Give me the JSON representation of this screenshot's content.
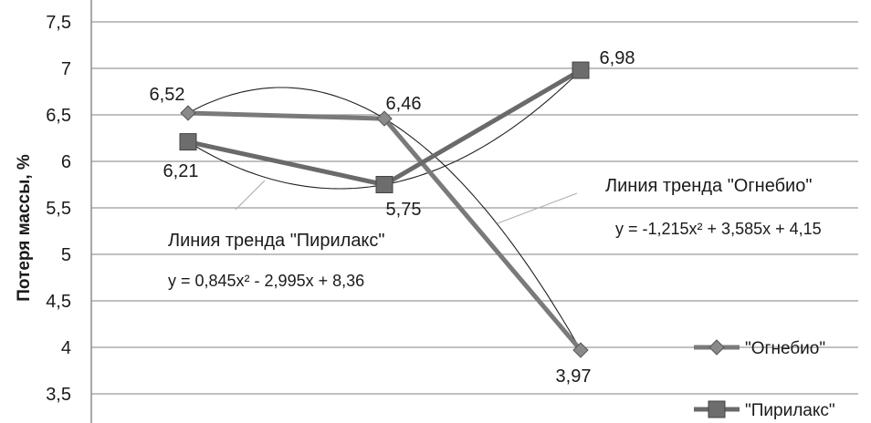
{
  "chart_data": {
    "type": "line",
    "ylabel": "Потеря массы, %",
    "xlabel": "",
    "title": "",
    "ylim": [
      3.5,
      7.5
    ],
    "y_ticks": [
      "7,5",
      "7",
      "6,5",
      "6",
      "5,5",
      "5",
      "4,5",
      "4",
      "3,5"
    ],
    "y_tick_values": [
      7.5,
      7,
      6.5,
      6,
      5.5,
      5,
      4.5,
      4,
      3.5
    ],
    "grid": true,
    "legend_position": "right",
    "x": [
      1,
      2,
      3
    ],
    "series": [
      {
        "name": "\"Огнебио\"",
        "marker": "diamond",
        "values": [
          6.52,
          6.46,
          3.97
        ],
        "labels": [
          "6,52",
          "6,46",
          "3,97"
        ],
        "color": "#7a7a7a",
        "trendline": {
          "label": "Линия тренда \"Огнебио\"",
          "equation": "y = -1,215x² + 3,585x + 4,15",
          "coefficients": [
            -1.215,
            3.585,
            4.15
          ]
        }
      },
      {
        "name": "\"Пирилакс\"",
        "marker": "square",
        "values": [
          6.21,
          5.75,
          6.98
        ],
        "labels": [
          "6,21",
          "5,75",
          "6,98"
        ],
        "color": "#6a6a6a",
        "trendline": {
          "label": "Линия тренда \"Пирилакс\"",
          "equation": "y = 0,845x² - 2,995x + 8,36",
          "coefficients": [
            0.845,
            -2.995,
            8.36
          ]
        }
      }
    ]
  }
}
